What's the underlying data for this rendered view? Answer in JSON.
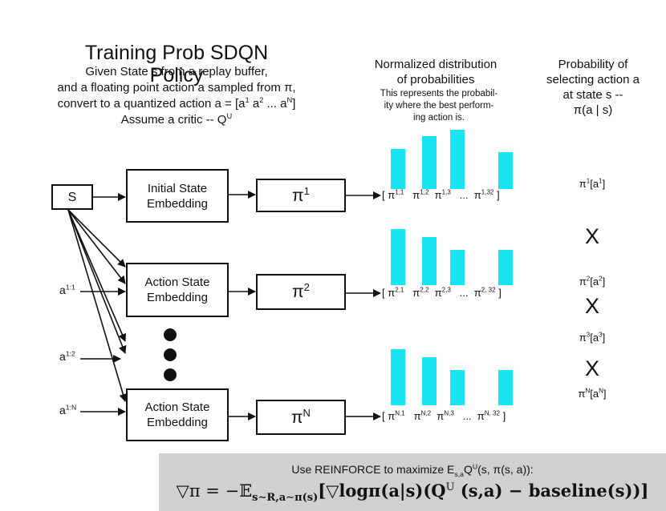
{
  "header": {
    "title": "Training Prob SDQN Policy",
    "line1": "Given State s from a replay buffer,",
    "line2": "and a floating point action a sampled from π,",
    "line3_prefix": "convert to a quantized action a = [a",
    "line3_sup1": "1",
    "line3_mid1": " a",
    "line3_sup2": "2",
    "line3_mid2": " ... a",
    "line3_sup3": "N",
    "line3_suffix": "]",
    "line4_prefix": "Assume a critic -- Q",
    "line4_sup": "U"
  },
  "dist_header": {
    "line1": "Normalized distribution",
    "line2": "of probabilities",
    "note1": "This represents the probabil-",
    "note2": "ity where the best perform-",
    "note3": "ing action is."
  },
  "prob_header": {
    "line1": "Probability of",
    "line2": "selecting action a",
    "line3": "at state s --",
    "line4": "π(a | s)"
  },
  "state": {
    "label": "S"
  },
  "embeddings": [
    {
      "line1": "Initial State",
      "line2": "Embedding"
    },
    {
      "line1": "Action State",
      "line2": "Embedding"
    },
    {
      "line1": "Action State",
      "line2": "Embedding"
    }
  ],
  "policies": [
    {
      "base": "π",
      "sup": "1"
    },
    {
      "base": "π",
      "sup": "2"
    },
    {
      "base": "π",
      "sup": "N"
    }
  ],
  "actions": [
    {
      "base": "a",
      "sup": "1:1"
    },
    {
      "base": "a",
      "sup": "1:2"
    },
    {
      "base": "a",
      "sup": "1:N"
    }
  ],
  "distributions": [
    {
      "open": "[ ",
      "close": " ]",
      "ellipsis": "...",
      "terms": [
        {
          "base": "π",
          "sup": "1,1"
        },
        {
          "base": "π",
          "sup": "1,2"
        },
        {
          "base": "π",
          "sup": "1,3"
        },
        {
          "base": "π",
          "sup": "1,32"
        }
      ],
      "bar_values": [
        0.42,
        0.55,
        0.62,
        0.38
      ]
    },
    {
      "open": "[ ",
      "close": " ]",
      "ellipsis": "...",
      "terms": [
        {
          "base": "π",
          "sup": "2,1"
        },
        {
          "base": "π",
          "sup": "2,2"
        },
        {
          "base": "π",
          "sup": "2,3"
        },
        {
          "base": "π",
          "sup": "2, 32"
        }
      ],
      "bar_values": [
        0.58,
        0.5,
        0.37,
        0.37
      ]
    },
    {
      "open": "[ ",
      "close": " ]",
      "ellipsis": "...",
      "terms": [
        {
          "base": "π",
          "sup": "N,1"
        },
        {
          "base": "π",
          "sup": "N,2"
        },
        {
          "base": "π",
          "sup": "N,3"
        },
        {
          "base": "π",
          "sup": "N, 32"
        }
      ],
      "bar_values": [
        0.58,
        0.5,
        0.37,
        0.37
      ]
    }
  ],
  "probs": [
    {
      "base": "π",
      "sup": "1",
      "arg_base": "[a",
      "arg_sup": "1",
      "arg_close": "]"
    },
    {
      "base": "π",
      "sup": "2",
      "arg_base": "[a",
      "arg_sup": "2",
      "arg_close": "]"
    },
    {
      "base": "π",
      "sup": "3",
      "arg_base": "[a",
      "arg_sup": "3",
      "arg_close": "]"
    },
    {
      "base": "π",
      "sup": "N",
      "arg_base": "[a",
      "arg_sup": "N",
      "arg_close": "]"
    }
  ],
  "multiply_symbol": "X",
  "banner": {
    "line1_prefix": "Use REINFORCE to maximize E",
    "line1_sub": "s,a",
    "line1_q": "Q",
    "line1_qsup": "U",
    "line1_suffix": "(s, π(s, a)):",
    "formula_a": "▽π = −𝔼",
    "formula_sub": "s∼R,a∼π(s)",
    "formula_b": "[▽logπ(a|s)(Q",
    "formula_sup": "U",
    "formula_c": " (s,a) − baseline(s))]"
  },
  "colors": {
    "bar": "#18e4f2",
    "banner": "#d0d0d0",
    "stroke": "#111111"
  }
}
